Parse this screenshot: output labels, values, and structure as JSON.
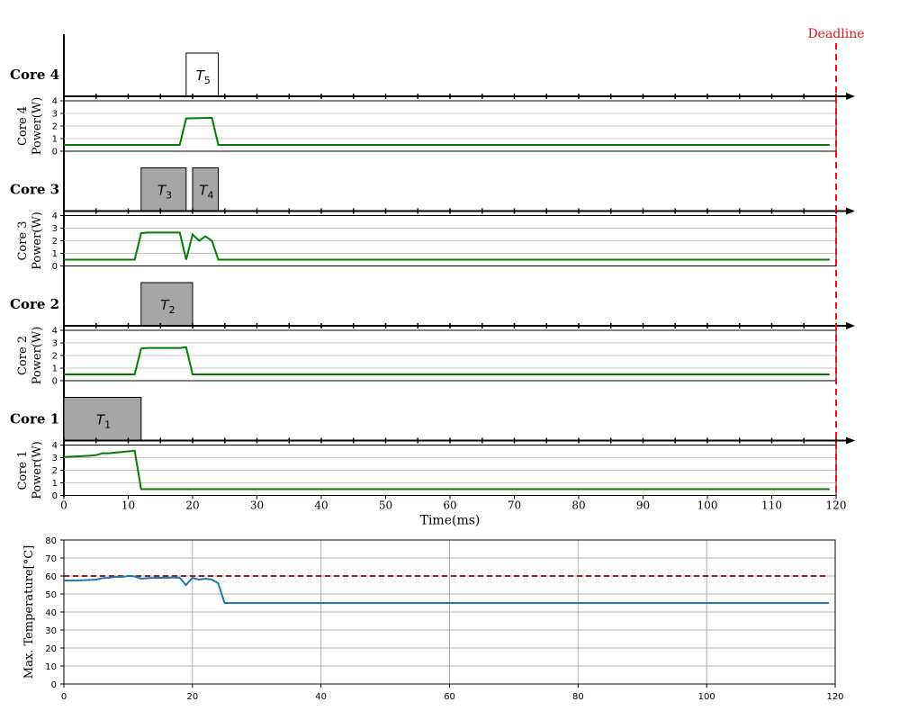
{
  "chart_data": [
    {
      "type": "line",
      "subtype": "gantt-with-power",
      "xlabel": "Time(ms)",
      "xlim": [
        0,
        120
      ],
      "xticks": [
        0,
        10,
        20,
        30,
        40,
        50,
        60,
        70,
        80,
        90,
        100,
        110,
        120
      ],
      "deadline": {
        "x": 120,
        "label": "Deadline",
        "color": "#e8141b"
      },
      "power_ylim": [
        0,
        4
      ],
      "power_yticks": [
        0,
        1,
        2,
        3,
        4
      ],
      "line_color": "#007f00",
      "cores": [
        {
          "name": "Core 4",
          "power_label": [
            "Core 4",
            "Power(W)"
          ],
          "tasks": [
            {
              "name": "T",
              "sub": "5",
              "start": 19,
              "end": 24,
              "fill": "#ffffff"
            }
          ],
          "power": [
            [
              0,
              0.5
            ],
            [
              18,
              0.5
            ],
            [
              19,
              2.6
            ],
            [
              23,
              2.65
            ],
            [
              24,
              0.5
            ],
            [
              119,
              0.5
            ]
          ]
        },
        {
          "name": "Core 3",
          "power_label": [
            "Core 3",
            "Power(W)"
          ],
          "tasks": [
            {
              "name": "T",
              "sub": "3",
              "start": 12,
              "end": 19,
              "fill": "#a6a6a6"
            },
            {
              "name": "T",
              "sub": "4",
              "start": 20,
              "end": 24,
              "fill": "#a6a6a6"
            }
          ],
          "power": [
            [
              0,
              0.5
            ],
            [
              11,
              0.5
            ],
            [
              12,
              2.6
            ],
            [
              13,
              2.65
            ],
            [
              18,
              2.65
            ],
            [
              19,
              0.5
            ],
            [
              20,
              2.5
            ],
            [
              21,
              2.0
            ],
            [
              22,
              2.35
            ],
            [
              23,
              2.0
            ],
            [
              24,
              0.5
            ],
            [
              119,
              0.5
            ]
          ]
        },
        {
          "name": "Core 2",
          "power_label": [
            "Core 2",
            "Power(W)"
          ],
          "tasks": [
            {
              "name": "T",
              "sub": "2",
              "start": 12,
              "end": 20,
              "fill": "#a6a6a6"
            }
          ],
          "power": [
            [
              0,
              0.5
            ],
            [
              11,
              0.5
            ],
            [
              12,
              2.55
            ],
            [
              13,
              2.6
            ],
            [
              18,
              2.6
            ],
            [
              19,
              2.65
            ],
            [
              20,
              0.5
            ],
            [
              119,
              0.5
            ]
          ]
        },
        {
          "name": "Core 1",
          "power_label": [
            "Core 1",
            "Power(W)"
          ],
          "tasks": [
            {
              "name": "T",
              "sub": "1",
              "start": 0,
              "end": 12,
              "fill": "#a6a6a6"
            }
          ],
          "power": [
            [
              0,
              3.05
            ],
            [
              2,
              3.1
            ],
            [
              4,
              3.15
            ],
            [
              5,
              3.2
            ],
            [
              6,
              3.35
            ],
            [
              7,
              3.35
            ],
            [
              8,
              3.4
            ],
            [
              9,
              3.45
            ],
            [
              10,
              3.5
            ],
            [
              11,
              3.55
            ],
            [
              12,
              0.5
            ],
            [
              119,
              0.5
            ]
          ]
        }
      ]
    },
    {
      "type": "line",
      "ylabel": "Max. Temperature[°C]",
      "xlim": [
        0,
        120
      ],
      "ylim": [
        0,
        80
      ],
      "xticks": [
        0,
        20,
        40,
        60,
        80,
        100,
        120
      ],
      "yticks": [
        0,
        10,
        20,
        30,
        40,
        50,
        60,
        70,
        80
      ],
      "grid": true,
      "threshold": {
        "y": 60,
        "color": "#8b0000",
        "style": "dashed"
      },
      "series": [
        {
          "color": "#1f77b4",
          "points": [
            [
              0,
              57.5
            ],
            [
              2,
              57.5
            ],
            [
              4,
              57.8
            ],
            [
              5,
              58.0
            ],
            [
              6,
              58.8
            ],
            [
              7,
              59.0
            ],
            [
              8,
              59.5
            ],
            [
              9,
              59.5
            ],
            [
              10,
              60.0
            ],
            [
              11,
              59.8
            ],
            [
              12,
              58.5
            ],
            [
              13,
              58.8
            ],
            [
              14,
              59.0
            ],
            [
              15,
              59.0
            ],
            [
              16,
              59.0
            ],
            [
              17,
              59.2
            ],
            [
              18,
              59.0
            ],
            [
              19,
              55.0
            ],
            [
              20,
              59.0
            ],
            [
              21,
              58.0
            ],
            [
              22,
              58.5
            ],
            [
              23,
              58.0
            ],
            [
              24,
              56.0
            ],
            [
              25,
              45.0
            ],
            [
              119,
              45.0
            ]
          ]
        }
      ]
    }
  ]
}
